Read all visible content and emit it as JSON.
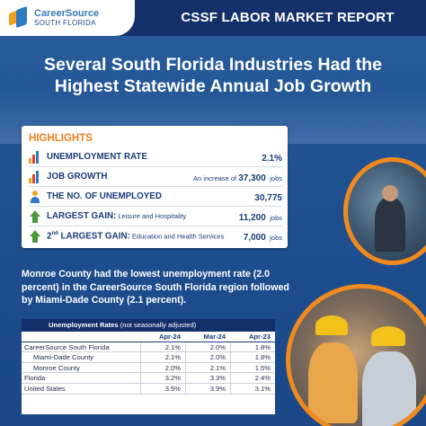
{
  "header": {
    "logo_line1": "CareerSource",
    "logo_line2": "SOUTH FLORIDA",
    "report_title": "CSSF LABOR MARKET REPORT"
  },
  "main_title_line1": "Several South Florida Industries Had the",
  "main_title_line2": "Highest Statewide Annual Job Growth",
  "highlights": {
    "title": "HIGHLIGHTS",
    "rows": [
      {
        "icon": "bar-chart-icon",
        "label": "UNEMPLOYMENT RATE",
        "sub": "",
        "pre": "",
        "value": "2.1%",
        "unit": ""
      },
      {
        "icon": "bar-chart-icon",
        "label": "JOB GROWTH",
        "sub": "",
        "pre": "An increase of ",
        "value": "37,300",
        "unit": " jobs"
      },
      {
        "icon": "person-icon",
        "label": "THE NO. OF UNEMPLOYED",
        "sub": "",
        "pre": "",
        "value": "30,775",
        "unit": ""
      },
      {
        "icon": "up-arrow-icon",
        "label": "LARGEST GAIN:",
        "sub": " Leisure and Hospitality",
        "pre": "",
        "value": "11,200",
        "unit": " jobs"
      },
      {
        "icon": "up-arrow-icon",
        "label_prefix": "2",
        "label_sup": "nd",
        "label": " LARGEST GAIN:",
        "sub": " Education and Health Services",
        "pre": "",
        "value": "7,000",
        "unit": " jobs"
      }
    ]
  },
  "paragraph": "Monroe County had the lowest unemployment rate (2.0 percent) in the CareerSource South Florida region followed by Miami-Dade County (2.1 percent).",
  "unemployment_table": {
    "title": "Unemployment Rates",
    "title_note": " (not seasonally adjusted)",
    "columns": [
      "Apr-24",
      "Mar-24",
      "Apr-23"
    ],
    "rows": [
      {
        "name": "CareerSource South Florida",
        "indent": false,
        "values": [
          "2.1%",
          "2.0%",
          "1.8%"
        ]
      },
      {
        "name": "Miami-Dade County",
        "indent": true,
        "values": [
          "2.1%",
          "2.0%",
          "1.8%"
        ]
      },
      {
        "name": "Monroe County",
        "indent": true,
        "values": [
          "2.0%",
          "2.1%",
          "1.5%"
        ]
      },
      {
        "name": "Florida",
        "indent": false,
        "values": [
          "3.2%",
          "3.3%",
          "2.4%"
        ]
      },
      {
        "name": "United States",
        "indent": false,
        "values": [
          "3.5%",
          "3.9%",
          "3.1%"
        ]
      }
    ]
  },
  "colors": {
    "navy": "#13306b",
    "accent_orange": "#ef7d1a",
    "text_blue": "#1b3b78",
    "icon_green": "#4a9a3a"
  }
}
